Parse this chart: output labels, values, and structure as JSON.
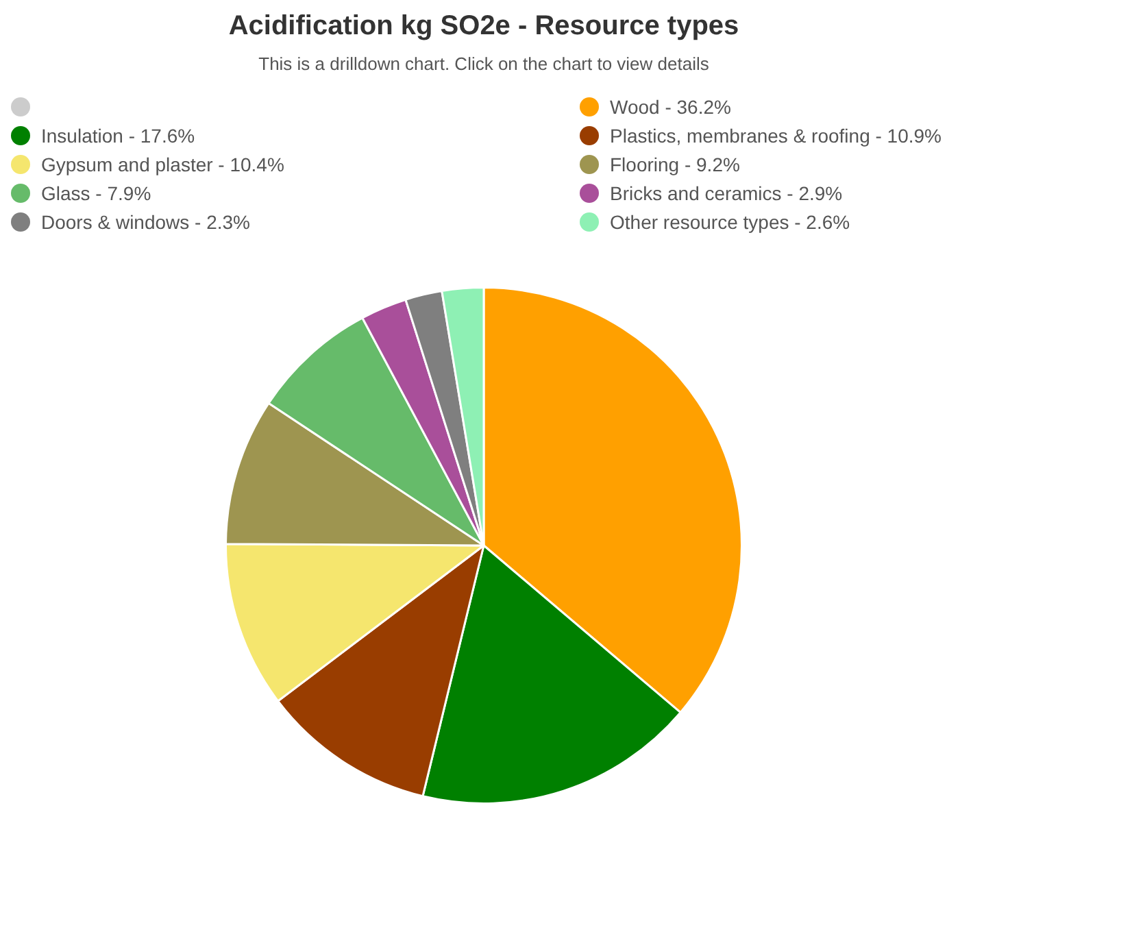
{
  "chart_data": {
    "type": "pie",
    "title": "Acidification kg SO2e - Resource types",
    "subtitle": "This is a drilldown chart. Click on the chart to view details",
    "categories": [
      null,
      "Wood - 36.2%",
      "Insulation - 17.6%",
      "Plastics, membranes & roofing - 10.9%",
      "Gypsum and plaster - 10.4%",
      "Flooring - 9.2%",
      "Glass - 7.9%",
      "Bricks and ceramics - 2.9%",
      "Doors & windows - 2.3%",
      "Other resource types - 2.6%"
    ],
    "values": [
      0,
      36.2,
      17.6,
      10.9,
      10.4,
      9.2,
      7.9,
      2.9,
      2.3,
      2.6
    ],
    "colors": [
      "#cccccc",
      "#ffa000",
      "#008000",
      "#993d00",
      "#f5e66e",
      "#9e9550",
      "#66bb6a",
      "#a94f9a",
      "#7f7f7f",
      "#8ef0b4"
    ],
    "legend": "top"
  }
}
